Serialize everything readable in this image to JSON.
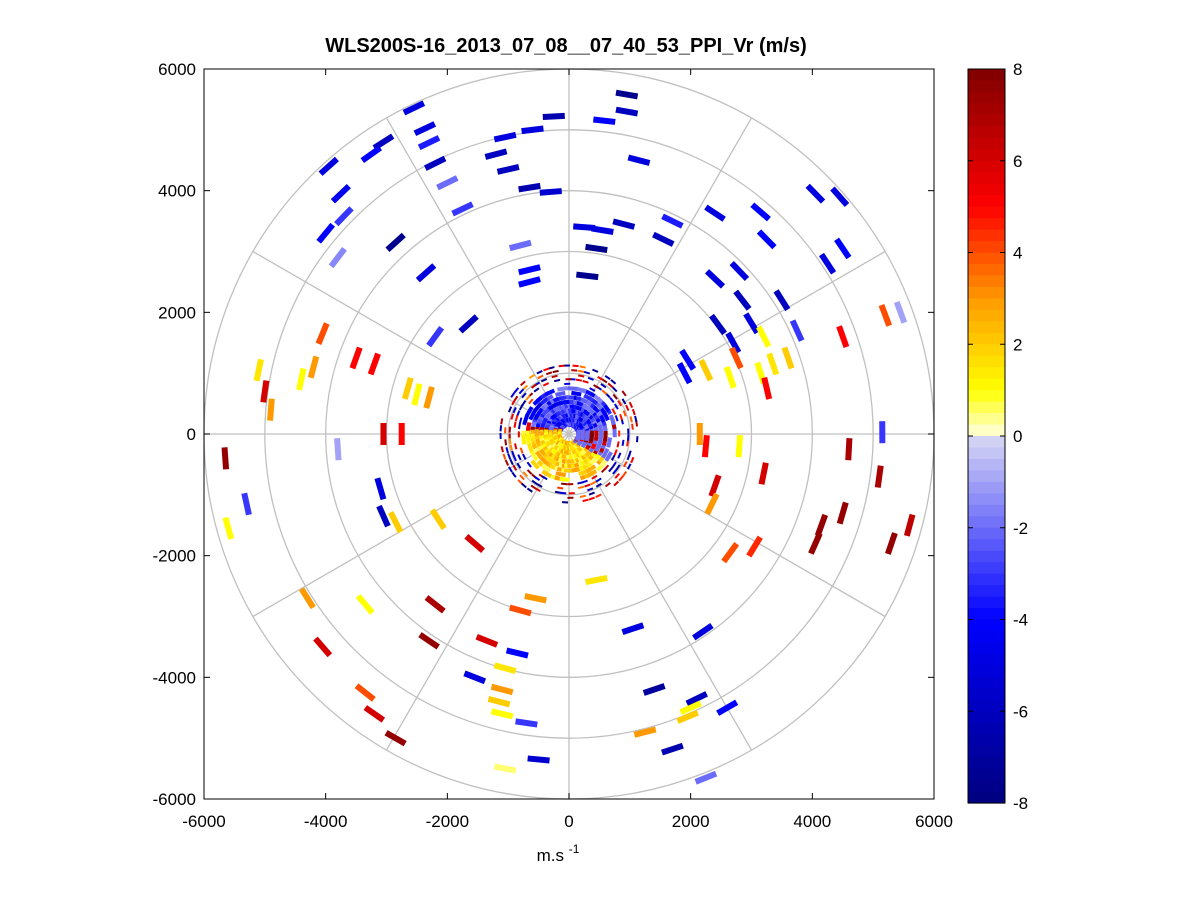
{
  "chart_data": {
    "type": "polar-scatter",
    "title": "WLS200S-16_2013_07_08__07_40_53_PPI_Vr (m/s)",
    "xlabel": "m.s",
    "xlabel_superscript": "-1",
    "ylabel": "",
    "xlim": [
      -6000,
      6000
    ],
    "ylim": [
      -6000,
      6000
    ],
    "x_ticks": [
      -6000,
      -4000,
      -2000,
      0,
      2000,
      4000,
      6000
    ],
    "y_ticks": [
      -6000,
      -4000,
      -2000,
      0,
      2000,
      4000,
      6000
    ],
    "x_tick_labels": [
      "-6000",
      "-4000",
      "-2000",
      "0",
      "2000",
      "4000",
      "6000"
    ],
    "y_tick_labels": [
      "6000",
      "4000",
      "2000",
      "0",
      "-2000",
      "-4000",
      "-6000"
    ],
    "grid_rings_m": [
      1000,
      2000,
      3000,
      4000,
      5000,
      6000
    ],
    "grid_spokes_deg": [
      0,
      30,
      60,
      90,
      120,
      150,
      180,
      210,
      240,
      270,
      300,
      330
    ],
    "colorbar": {
      "min": -8,
      "max": 8,
      "ticks": [
        8,
        6,
        4,
        2,
        0,
        -2,
        -4,
        -6,
        -8
      ],
      "tick_labels": [
        "8",
        "6",
        "4",
        "2",
        "0",
        "-2",
        "-4",
        "-6",
        "-8"
      ],
      "colormap": "blue-white-yellow-red",
      "levels": 64
    },
    "colormap_stops": [
      {
        "v": -8,
        "color": "#00007f"
      },
      {
        "v": -4,
        "color": "#0000ff"
      },
      {
        "v": 0,
        "color": "#d8d8f4"
      },
      {
        "v": 0.01,
        "color": "#ffffe0"
      },
      {
        "v": 1,
        "color": "#ffff00"
      },
      {
        "v": 3,
        "color": "#ff9900"
      },
      {
        "v": 5,
        "color": "#ff0000"
      },
      {
        "v": 8,
        "color": "#7f0000"
      }
    ],
    "series": [
      {
        "name": "Radial velocity (Vr)",
        "units": "m/s",
        "points": [
          {
            "x": 950,
            "y": 5580,
            "v": -7.5
          },
          {
            "x": 950,
            "y": 5300,
            "v": -6
          },
          {
            "x": 580,
            "y": 5150,
            "v": -4
          },
          {
            "x": -250,
            "y": 5220,
            "v": -6.5
          },
          {
            "x": -600,
            "y": 5000,
            "v": -5
          },
          {
            "x": -1050,
            "y": 4880,
            "v": -5
          },
          {
            "x": -1200,
            "y": 4600,
            "v": -6
          },
          {
            "x": -1000,
            "y": 4350,
            "v": -6
          },
          {
            "x": -650,
            "y": 4050,
            "v": -6.5
          },
          {
            "x": -300,
            "y": 3980,
            "v": -5.5
          },
          {
            "x": 1150,
            "y": 4500,
            "v": -5
          },
          {
            "x": -2550,
            "y": 5360,
            "v": -5
          },
          {
            "x": -2370,
            "y": 5020,
            "v": -5
          },
          {
            "x": -2300,
            "y": 4790,
            "v": -3.5
          },
          {
            "x": -2200,
            "y": 4450,
            "v": -6
          },
          {
            "x": -2000,
            "y": 4130,
            "v": -2
          },
          {
            "x": -1750,
            "y": 3700,
            "v": -3
          },
          {
            "x": -3050,
            "y": 4800,
            "v": -6
          },
          {
            "x": -3250,
            "y": 4600,
            "v": -4
          },
          {
            "x": -3950,
            "y": 4400,
            "v": -5
          },
          {
            "x": -3750,
            "y": 3950,
            "v": -4.5
          },
          {
            "x": -3700,
            "y": 3580,
            "v": -3
          },
          {
            "x": -4000,
            "y": 3300,
            "v": -4
          },
          {
            "x": -3800,
            "y": 2900,
            "v": -1.5
          },
          {
            "x": -2850,
            "y": 3150,
            "v": -7.5
          },
          {
            "x": -2350,
            "y": 2650,
            "v": -5
          },
          {
            "x": -800,
            "y": 3100,
            "v": -2
          },
          {
            "x": -650,
            "y": 2700,
            "v": -4
          },
          {
            "x": -650,
            "y": 2500,
            "v": -4
          },
          {
            "x": 250,
            "y": 3400,
            "v": -5
          },
          {
            "x": 550,
            "y": 3350,
            "v": -5
          },
          {
            "x": 900,
            "y": 3450,
            "v": -6
          },
          {
            "x": 1700,
            "y": 3500,
            "v": -3.5
          },
          {
            "x": 1550,
            "y": 3200,
            "v": -6
          },
          {
            "x": 450,
            "y": 3050,
            "v": -7.5
          },
          {
            "x": 300,
            "y": 2600,
            "v": -7.5
          },
          {
            "x": 2400,
            "y": 3630,
            "v": -5
          },
          {
            "x": 3150,
            "y": 3650,
            "v": -4
          },
          {
            "x": 3250,
            "y": 3200,
            "v": -4
          },
          {
            "x": 4050,
            "y": 3950,
            "v": -5
          },
          {
            "x": 4450,
            "y": 3900,
            "v": -5
          },
          {
            "x": 4500,
            "y": 3050,
            "v": -4
          },
          {
            "x": 4250,
            "y": 2800,
            "v": -5
          },
          {
            "x": 2400,
            "y": 2550,
            "v": -5
          },
          {
            "x": 2800,
            "y": 2680,
            "v": -5
          },
          {
            "x": 2850,
            "y": 2200,
            "v": -6
          },
          {
            "x": 3500,
            "y": 2200,
            "v": -6
          },
          {
            "x": 3000,
            "y": 1820,
            "v": -5
          },
          {
            "x": 3750,
            "y": 1700,
            "v": -3
          },
          {
            "x": 2450,
            "y": 1800,
            "v": -6
          },
          {
            "x": 2700,
            "y": 1500,
            "v": -5
          },
          {
            "x": 1950,
            "y": 1220,
            "v": -4
          },
          {
            "x": 1900,
            "y": 1000,
            "v": -4
          },
          {
            "x": 5150,
            "y": 30,
            "v": -3
          },
          {
            "x": 5450,
            "y": 2000,
            "v": -1
          },
          {
            "x": -3800,
            "y": -250,
            "v": -1
          },
          {
            "x": -5300,
            "y": -1150,
            "v": -3
          },
          {
            "x": -3100,
            "y": -900,
            "v": -5
          },
          {
            "x": -3050,
            "y": -1350,
            "v": -6
          },
          {
            "x": -1650,
            "y": 1810,
            "v": -6
          },
          {
            "x": -2200,
            "y": 1600,
            "v": -3
          },
          {
            "x": 1050,
            "y": -3200,
            "v": -5
          },
          {
            "x": 2200,
            "y": -3250,
            "v": -5
          },
          {
            "x": -850,
            "y": -3600,
            "v": -4
          },
          {
            "x": -1550,
            "y": -4000,
            "v": -5
          },
          {
            "x": -700,
            "y": -4750,
            "v": -3
          },
          {
            "x": -500,
            "y": -5350,
            "v": -5.5
          },
          {
            "x": 1400,
            "y": -4200,
            "v": -7
          },
          {
            "x": 2100,
            "y": -4350,
            "v": -6
          },
          {
            "x": 1700,
            "y": -5180,
            "v": -6.5
          },
          {
            "x": 2250,
            "y": -5650,
            "v": -2
          },
          {
            "x": 2600,
            "y": -4500,
            "v": -4
          },
          {
            "x": 2650,
            "y": -1950,
            "v": 4
          },
          {
            "x": 3050,
            "y": -1850,
            "v": 4.5
          },
          {
            "x": 3200,
            "y": -650,
            "v": 6
          },
          {
            "x": 3150,
            "y": 1000,
            "v": 1
          },
          {
            "x": 3250,
            "y": 750,
            "v": 5
          },
          {
            "x": 2650,
            "y": 930,
            "v": 1
          },
          {
            "x": 2750,
            "y": 1250,
            "v": 4
          },
          {
            "x": 2250,
            "y": 1050,
            "v": 2
          },
          {
            "x": 2150,
            "y": -0.1,
            "v": 3
          },
          {
            "x": 2250,
            "y": -200,
            "v": 5
          },
          {
            "x": 2800,
            "y": -200,
            "v": 1
          },
          {
            "x": 2400,
            "y": -850,
            "v": 6
          },
          {
            "x": 2350,
            "y": -1150,
            "v": 3
          },
          {
            "x": 3200,
            "y": 1600,
            "v": 1
          },
          {
            "x": 3350,
            "y": 1150,
            "v": 1.5
          },
          {
            "x": 3600,
            "y": 1250,
            "v": 2
          },
          {
            "x": 4500,
            "y": 1600,
            "v": 5
          },
          {
            "x": 5200,
            "y": 1950,
            "v": 4
          },
          {
            "x": 4600,
            "y": -250,
            "v": 7
          },
          {
            "x": 4500,
            "y": -1300,
            "v": 7.5
          },
          {
            "x": 4150,
            "y": -1500,
            "v": 7.5
          },
          {
            "x": 4050,
            "y": -1800,
            "v": 7.5
          },
          {
            "x": 5100,
            "y": -700,
            "v": 7
          },
          {
            "x": 5300,
            "y": -1800,
            "v": 7.5
          },
          {
            "x": 5600,
            "y": -1500,
            "v": 6.5
          },
          {
            "x": -5650,
            "y": -400,
            "v": 7.5
          },
          {
            "x": -5600,
            "y": -1550,
            "v": 1
          },
          {
            "x": -5100,
            "y": 1050,
            "v": 1.5
          },
          {
            "x": -5000,
            "y": 700,
            "v": 6
          },
          {
            "x": -4900,
            "y": 400,
            "v": 3
          },
          {
            "x": -4050,
            "y": 1650,
            "v": 4
          },
          {
            "x": -4200,
            "y": 1100,
            "v": 3
          },
          {
            "x": -4400,
            "y": 900,
            "v": 1
          },
          {
            "x": -3500,
            "y": 1250,
            "v": 5
          },
          {
            "x": -3200,
            "y": 1150,
            "v": 5
          },
          {
            "x": -2650,
            "y": 750,
            "v": 2
          },
          {
            "x": -2500,
            "y": 650,
            "v": 1
          },
          {
            "x": -2300,
            "y": 600,
            "v": 3
          },
          {
            "x": -3050,
            "y": 0,
            "v": 6
          },
          {
            "x": -2750,
            "y": 0,
            "v": 5
          },
          {
            "x": -2850,
            "y": -1450,
            "v": 2
          },
          {
            "x": -2150,
            "y": -1400,
            "v": 2
          },
          {
            "x": -1550,
            "y": -1800,
            "v": 6
          },
          {
            "x": -4300,
            "y": -2700,
            "v": 3
          },
          {
            "x": -3350,
            "y": -2800,
            "v": 1
          },
          {
            "x": -2200,
            "y": -2800,
            "v": 7
          },
          {
            "x": -2300,
            "y": -3400,
            "v": 7.5
          },
          {
            "x": -4050,
            "y": -3500,
            "v": 6
          },
          {
            "x": -3350,
            "y": -4250,
            "v": 4
          },
          {
            "x": -3200,
            "y": -4600,
            "v": 6
          },
          {
            "x": -2850,
            "y": -5000,
            "v": 7.5
          },
          {
            "x": -1350,
            "y": -3400,
            "v": 6
          },
          {
            "x": -1050,
            "y": -3850,
            "v": 1.5
          },
          {
            "x": -1100,
            "y": -4200,
            "v": 3
          },
          {
            "x": -1150,
            "y": -4400,
            "v": 2
          },
          {
            "x": -1100,
            "y": -4600,
            "v": 1
          },
          {
            "x": -1050,
            "y": -5500,
            "v": 0.5
          },
          {
            "x": -550,
            "y": -2700,
            "v": 3
          },
          {
            "x": -800,
            "y": -2900,
            "v": 4
          },
          {
            "x": 450,
            "y": -2400,
            "v": 1.5
          },
          {
            "x": 1250,
            "y": -4900,
            "v": 3
          },
          {
            "x": 1950,
            "y": -4650,
            "v": 2
          },
          {
            "x": 2000,
            "y": -4500,
            "v": 1
          }
        ]
      }
    ]
  }
}
